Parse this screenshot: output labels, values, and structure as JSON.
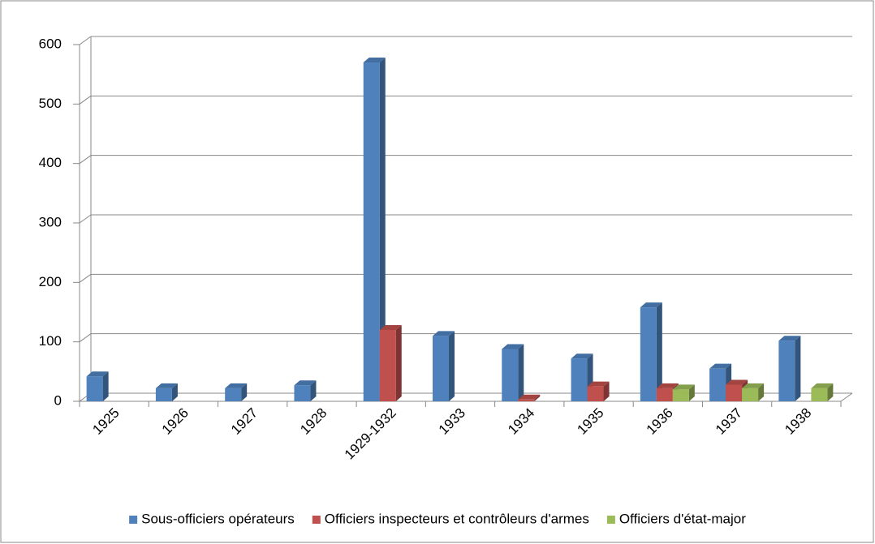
{
  "chart_data": {
    "type": "bar",
    "categories": [
      "1925",
      "1926",
      "1927",
      "1928",
      "1929-1932",
      "1933",
      "1934",
      "1935",
      "1936",
      "1937",
      "1938"
    ],
    "series": [
      {
        "name": "Sous-officiers opérateurs",
        "color": "#4f81bd",
        "values": [
          42,
          22,
          22,
          27,
          570,
          110,
          88,
          72,
          158,
          55,
          102
        ]
      },
      {
        "name": "Officiers inspecteurs et contrôleurs d'armes",
        "color": "#c0504d",
        "values": [
          null,
          null,
          null,
          null,
          120,
          null,
          3,
          25,
          22,
          28,
          null
        ]
      },
      {
        "name": "Officiers d'état-major",
        "color": "#9bbb59",
        "values": [
          null,
          null,
          null,
          null,
          null,
          null,
          null,
          null,
          20,
          22,
          22
        ]
      }
    ],
    "ylim": [
      0,
      600
    ],
    "yticks": [
      0,
      100,
      200,
      300,
      400,
      500,
      600
    ],
    "grid": true,
    "legend": "bottom"
  }
}
